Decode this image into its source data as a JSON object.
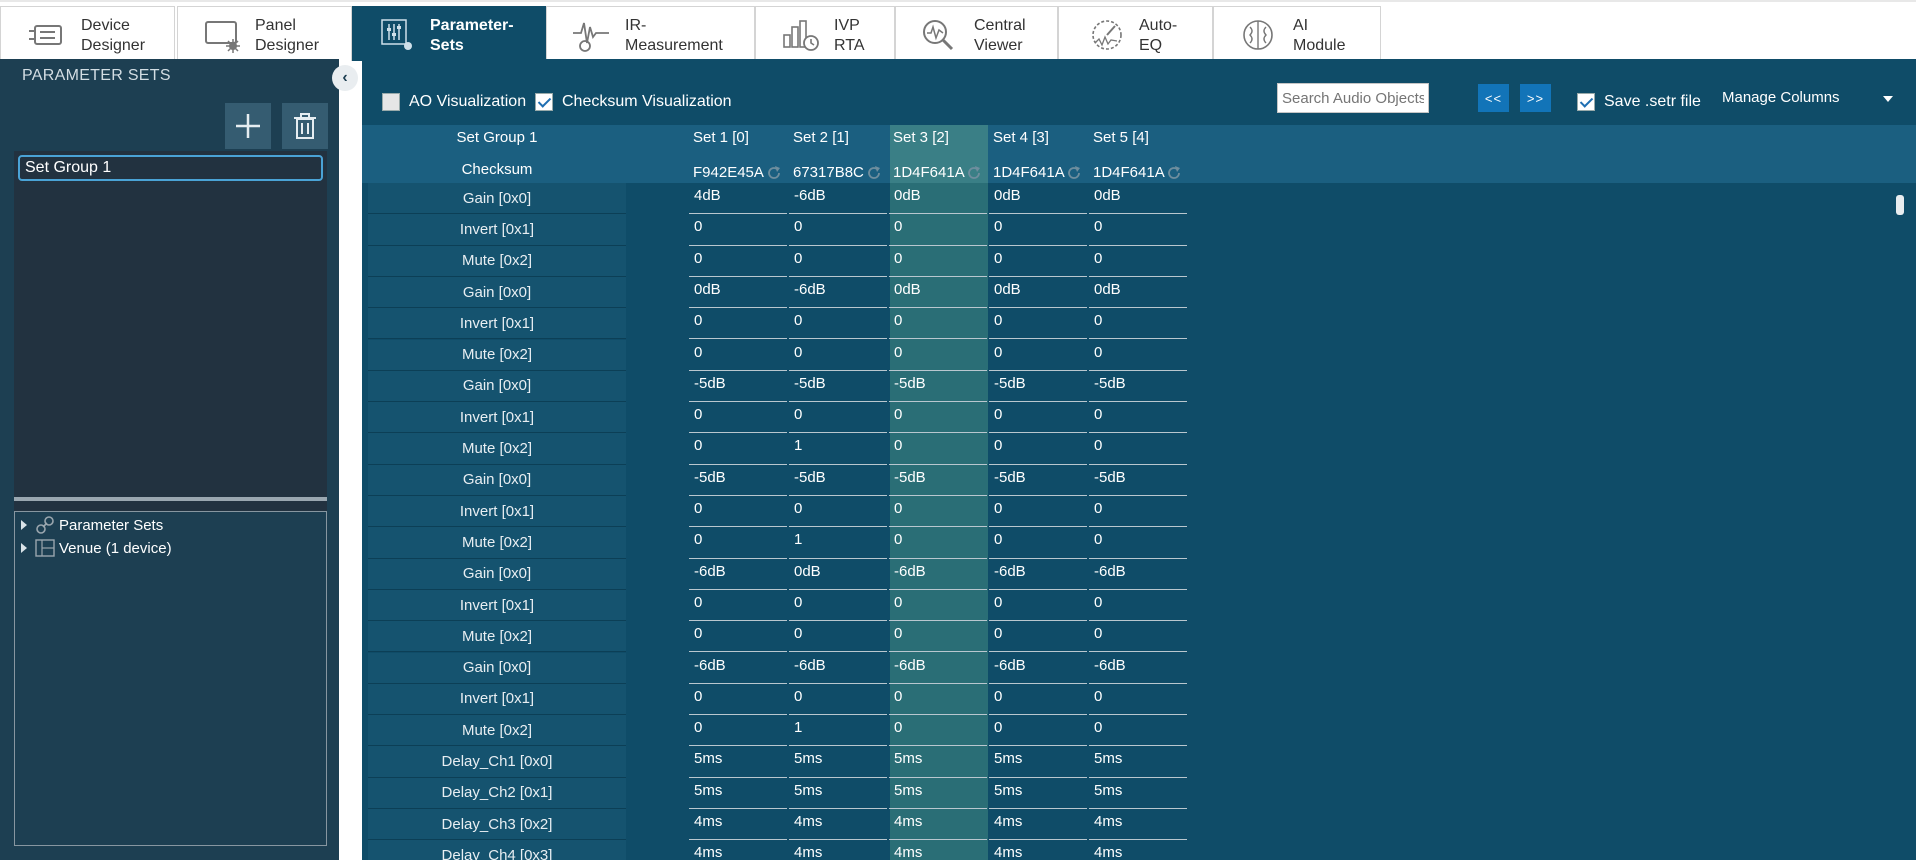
{
  "tabs": [
    {
      "line1": "Device",
      "line2": "Designer",
      "icon": "chip-icon"
    },
    {
      "line1": "Panel",
      "line2": "Designer",
      "icon": "panel-icon"
    },
    {
      "line1": "Parameter-",
      "line2": "Sets",
      "icon": "sliders-icon",
      "active": true
    },
    {
      "line1": "IR-",
      "line2": "Measurement",
      "icon": "waveform-icon"
    },
    {
      "line1": "IVP",
      "line2": "RTA",
      "icon": "bars-icon"
    },
    {
      "line1": "Central",
      "line2": "Viewer",
      "icon": "magnifier-icon"
    },
    {
      "line1": "Auto-",
      "line2": "EQ",
      "icon": "gauge-icon"
    },
    {
      "line1": "AI",
      "line2": "Module",
      "icon": "brain-icon"
    }
  ],
  "left_panel": {
    "title": "PARAMETER SETS",
    "set_groups": [
      "Set Group 1"
    ],
    "tree": [
      "Parameter Sets",
      "Venue (1 device)"
    ]
  },
  "toolbar": {
    "ao_visualization": "AO Visualization",
    "ao_checked": false,
    "checksum_visualization": "Checksum Visualization",
    "checksum_checked": true,
    "search_placeholder": "Search Audio Objects",
    "prev_label": "<<",
    "next_label": ">>",
    "save_setr": "Save .setr file",
    "save_checked": true,
    "manage_columns": "Manage Columns"
  },
  "grid": {
    "group_header": "Set Group 1",
    "checksum_label": "Checksum",
    "columns": [
      "Set 1 [0]",
      "Set 2 [1]",
      "Set 3 [2]",
      "Set 4 [3]",
      "Set 5 [4]"
    ],
    "checksums": [
      "F942E45A",
      "67317B8C",
      "1D4F641A",
      "1D4F641A",
      "1D4F641A"
    ],
    "selected_column": 2,
    "rows": [
      {
        "label": "Gain [0x0]",
        "values": [
          "4dB",
          "-6dB",
          "0dB",
          "0dB",
          "0dB"
        ]
      },
      {
        "label": "Invert [0x1]",
        "values": [
          "0",
          "0",
          "0",
          "0",
          "0"
        ]
      },
      {
        "label": "Mute [0x2]",
        "values": [
          "0",
          "0",
          "0",
          "0",
          "0"
        ]
      },
      {
        "label": "Gain [0x0]",
        "values": [
          "0dB",
          "-6dB",
          "0dB",
          "0dB",
          "0dB"
        ]
      },
      {
        "label": "Invert [0x1]",
        "values": [
          "0",
          "0",
          "0",
          "0",
          "0"
        ]
      },
      {
        "label": "Mute [0x2]",
        "values": [
          "0",
          "0",
          "0",
          "0",
          "0"
        ]
      },
      {
        "label": "Gain [0x0]",
        "values": [
          "-5dB",
          "-5dB",
          "-5dB",
          "-5dB",
          "-5dB"
        ]
      },
      {
        "label": "Invert [0x1]",
        "values": [
          "0",
          "0",
          "0",
          "0",
          "0"
        ]
      },
      {
        "label": "Mute [0x2]",
        "values": [
          "0",
          "1",
          "0",
          "0",
          "0"
        ]
      },
      {
        "label": "Gain [0x0]",
        "values": [
          "-5dB",
          "-5dB",
          "-5dB",
          "-5dB",
          "-5dB"
        ]
      },
      {
        "label": "Invert [0x1]",
        "values": [
          "0",
          "0",
          "0",
          "0",
          "0"
        ]
      },
      {
        "label": "Mute [0x2]",
        "values": [
          "0",
          "1",
          "0",
          "0",
          "0"
        ]
      },
      {
        "label": "Gain [0x0]",
        "values": [
          "-6dB",
          "0dB",
          "-6dB",
          "-6dB",
          "-6dB"
        ]
      },
      {
        "label": "Invert [0x1]",
        "values": [
          "0",
          "0",
          "0",
          "0",
          "0"
        ]
      },
      {
        "label": "Mute [0x2]",
        "values": [
          "0",
          "0",
          "0",
          "0",
          "0"
        ]
      },
      {
        "label": "Gain [0x0]",
        "values": [
          "-6dB",
          "-6dB",
          "-6dB",
          "-6dB",
          "-6dB"
        ]
      },
      {
        "label": "Invert [0x1]",
        "values": [
          "0",
          "0",
          "0",
          "0",
          "0"
        ]
      },
      {
        "label": "Mute [0x2]",
        "values": [
          "0",
          "1",
          "0",
          "0",
          "0"
        ]
      },
      {
        "label": "Delay_Ch1 [0x0]",
        "values": [
          "5ms",
          "5ms",
          "5ms",
          "5ms",
          "5ms"
        ]
      },
      {
        "label": "Delay_Ch2 [0x1]",
        "values": [
          "5ms",
          "5ms",
          "5ms",
          "5ms",
          "5ms"
        ]
      },
      {
        "label": "Delay_Ch3 [0x2]",
        "values": [
          "4ms",
          "4ms",
          "4ms",
          "4ms",
          "4ms"
        ]
      },
      {
        "label": "Delay_Ch4 [0x3]",
        "values": [
          "4ms",
          "4ms",
          "4ms",
          "4ms",
          "4ms"
        ]
      }
    ]
  },
  "colors": {
    "accent": "#0f4c68",
    "header": "#1b5f80",
    "selected_column": "#2a6e76",
    "button": "#1274b8"
  }
}
